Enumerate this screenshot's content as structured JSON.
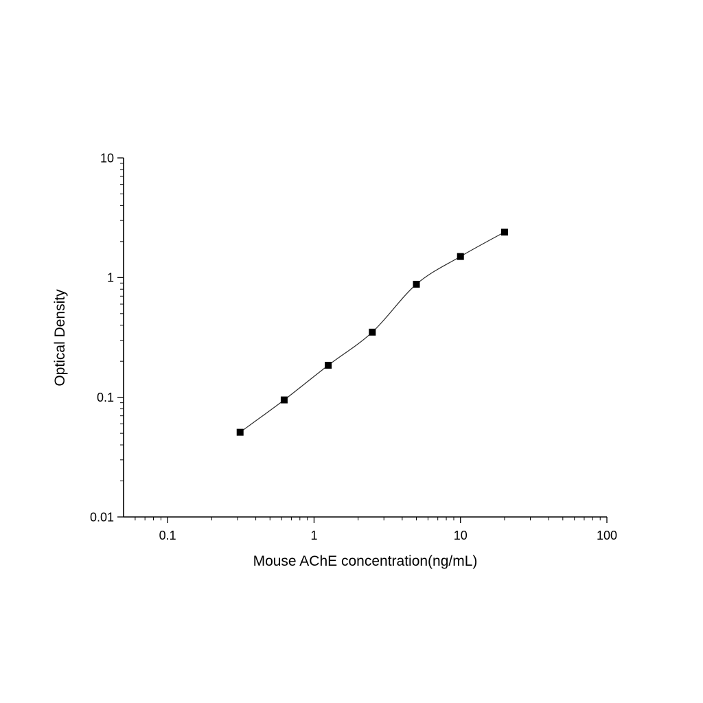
{
  "chart_data": {
    "type": "scatter",
    "title": "",
    "xlabel": "Mouse AChE concentration(ng/mL)",
    "ylabel": "Optical Density",
    "xscale": "log",
    "yscale": "log",
    "xlim": [
      0.05,
      100
    ],
    "ylim": [
      0.01,
      10
    ],
    "x": [
      0.3125,
      0.625,
      1.25,
      2.5,
      5,
      10,
      20
    ],
    "y": [
      0.051,
      0.095,
      0.185,
      0.35,
      0.88,
      1.5,
      2.4
    ],
    "x_tick_values": [
      0.1,
      1,
      10,
      100
    ],
    "x_tick_labels": [
      "0.1",
      "1",
      "10",
      "100"
    ],
    "y_tick_values": [
      10,
      1,
      0.1,
      0.01
    ],
    "y_tick_labels": [
      "10",
      "1",
      "0.1",
      "0.01"
    ],
    "grid": false,
    "legend": false,
    "series_name": "standard-curve",
    "marker": "square",
    "marker_color": "#000000",
    "line_color": "#2b2b2b",
    "axis_color": "#000000",
    "text_color": "#000000",
    "background_color": "#ffffff",
    "tick_font_size": 18
  }
}
